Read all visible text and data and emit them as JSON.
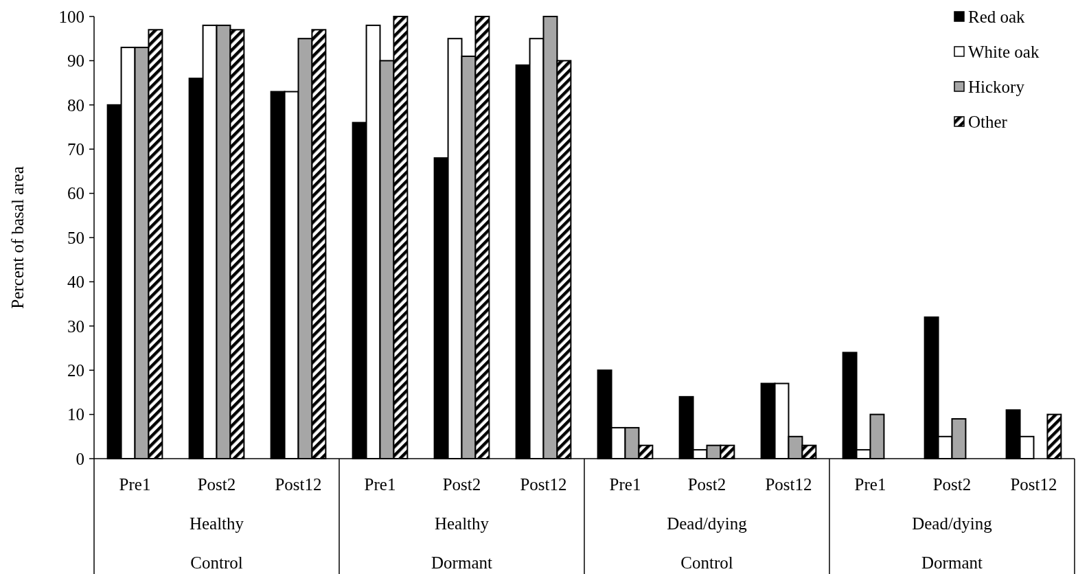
{
  "chart_data": {
    "type": "bar",
    "ylabel": "Percent of basal area",
    "categories": [
      "Pre1",
      "Post2",
      "Post12",
      "Pre1",
      "Post2",
      "Post12",
      "Pre1",
      "Post2",
      "Post12",
      "Pre1",
      "Post2",
      "Post12"
    ],
    "annotations": [
      "Healthy",
      "Control",
      "Healthy",
      "Dormant",
      "Dead/dying",
      "Control",
      "Dead/dying",
      "Dormant"
    ],
    "series": [
      {
        "name": "Red oak",
        "color": "#000000",
        "values": [
          80,
          86,
          83,
          76,
          68,
          89,
          20,
          14,
          17,
          24,
          32,
          11
        ]
      },
      {
        "name": "White oak",
        "color": "#ffffff",
        "values": [
          93,
          98,
          83,
          98,
          95,
          95,
          7,
          2,
          17,
          2,
          5,
          5
        ]
      },
      {
        "name": "Hickory",
        "color": "#a6a6a6",
        "values": [
          93,
          98,
          95,
          90,
          91,
          100,
          7,
          3,
          5,
          10,
          9,
          0
        ]
      },
      {
        "name": "Other",
        "color": "#000000",
        "values": [
          97,
          97,
          97,
          100,
          100,
          90,
          3,
          3,
          3,
          0,
          0,
          10
        ]
      }
    ],
    "ylim": [
      0,
      100
    ],
    "yticks": [
      0,
      10,
      20,
      30,
      40,
      50,
      60,
      70,
      80,
      90,
      100
    ],
    "legend": "top right"
  }
}
